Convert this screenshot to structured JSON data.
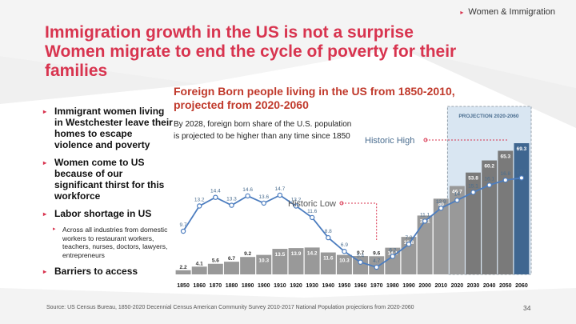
{
  "header_tag": "Women & Immigration",
  "title_lines": [
    "Immigration growth in the US is not a surprise",
    "Women migrate to end the cycle of poverty for their",
    "families"
  ],
  "bullets": [
    {
      "text": "Immigrant women living in Westchester leave their homes to escape violence and poverty"
    },
    {
      "text": "Women come to US because of our significant thirst for this workforce"
    },
    {
      "text": "Labor shortage in US"
    },
    {
      "sub": "Across all industries from domestic workers to restaurant workers, teachers, nurses, doctors, lawyers, entrepreneurs"
    },
    {
      "text": "Barriers to access"
    }
  ],
  "source": "Source: US Census Bureau, 1850-2020 Decennial  Census American Community Survey 2010-2017 National Population projections from 2020-2060",
  "page_number": "34",
  "colors": {
    "accent": "#d8344f",
    "bar_gray": "#999999",
    "bar_dark_gray": "#7a7a7a",
    "bar_blue": "#3f6690",
    "line": "#4c7dbf",
    "projection_box": "#d9e6f2"
  },
  "chart_data": {
    "type": "bar",
    "title": "Foreign Born people living in the US from 1850-2010, projected from 2020-2060",
    "note": "By 2028, foreign born share of  the U.S. population is projected to be higher than any time since 1850",
    "categories": [
      "1850",
      "1860",
      "1870",
      "1880",
      "1890",
      "1900",
      "1910",
      "1920",
      "1930",
      "1940",
      "1950",
      "1960",
      "1970",
      "1980",
      "1990",
      "2000",
      "2010",
      "2020",
      "2030",
      "2040",
      "2050",
      "2060"
    ],
    "series": [
      {
        "values": [
          2.2,
          4.1,
          5.6,
          6.7,
          9.2,
          10.3,
          13.5,
          13.9,
          14.2,
          11.6,
          10.3,
          9.7,
          9.6,
          14.1,
          19.8,
          31.1,
          40,
          46.7,
          53.8,
          60.2,
          65.3,
          69.3
        ],
        "labels": [
          "2.2",
          "4.1",
          "5.6",
          "6.7",
          "9.2",
          "10.3",
          "13.5",
          "13.9",
          "14.2",
          "11.6",
          "10.3",
          "9.7",
          "9.6",
          "14.1",
          "19.8",
          "31.1",
          "40",
          "46.7",
          "53.8",
          "60.2",
          "65.3",
          "69.3"
        ]
      },
      {
        "type": "line",
        "values": [
          9.7,
          13.2,
          14.4,
          13.3,
          14.6,
          13.6,
          14.7,
          13.2,
          11.6,
          8.8,
          6.9,
          5.4,
          4.7,
          6.2,
          7.9,
          11.1,
          12.9,
          14,
          15.1,
          16.1,
          16.8,
          17.1
        ],
        "labels": [
          "9.7",
          "13.2",
          "14.4",
          "13.3",
          "14.6",
          "13.6",
          "14.7",
          "13.2",
          "11.6",
          "8.8",
          "6.9",
          "5.4",
          "4.7",
          "6.2",
          "7.9",
          "11.1",
          "12.9",
          "14",
          "15.1",
          "16.1",
          "16.8",
          "17.1"
        ]
      }
    ],
    "projection_label": "PROJECTION 2020-2060",
    "annotations": {
      "high": "Historic High",
      "low": "Historic Low"
    },
    "ylim": [
      0,
      75
    ]
  }
}
